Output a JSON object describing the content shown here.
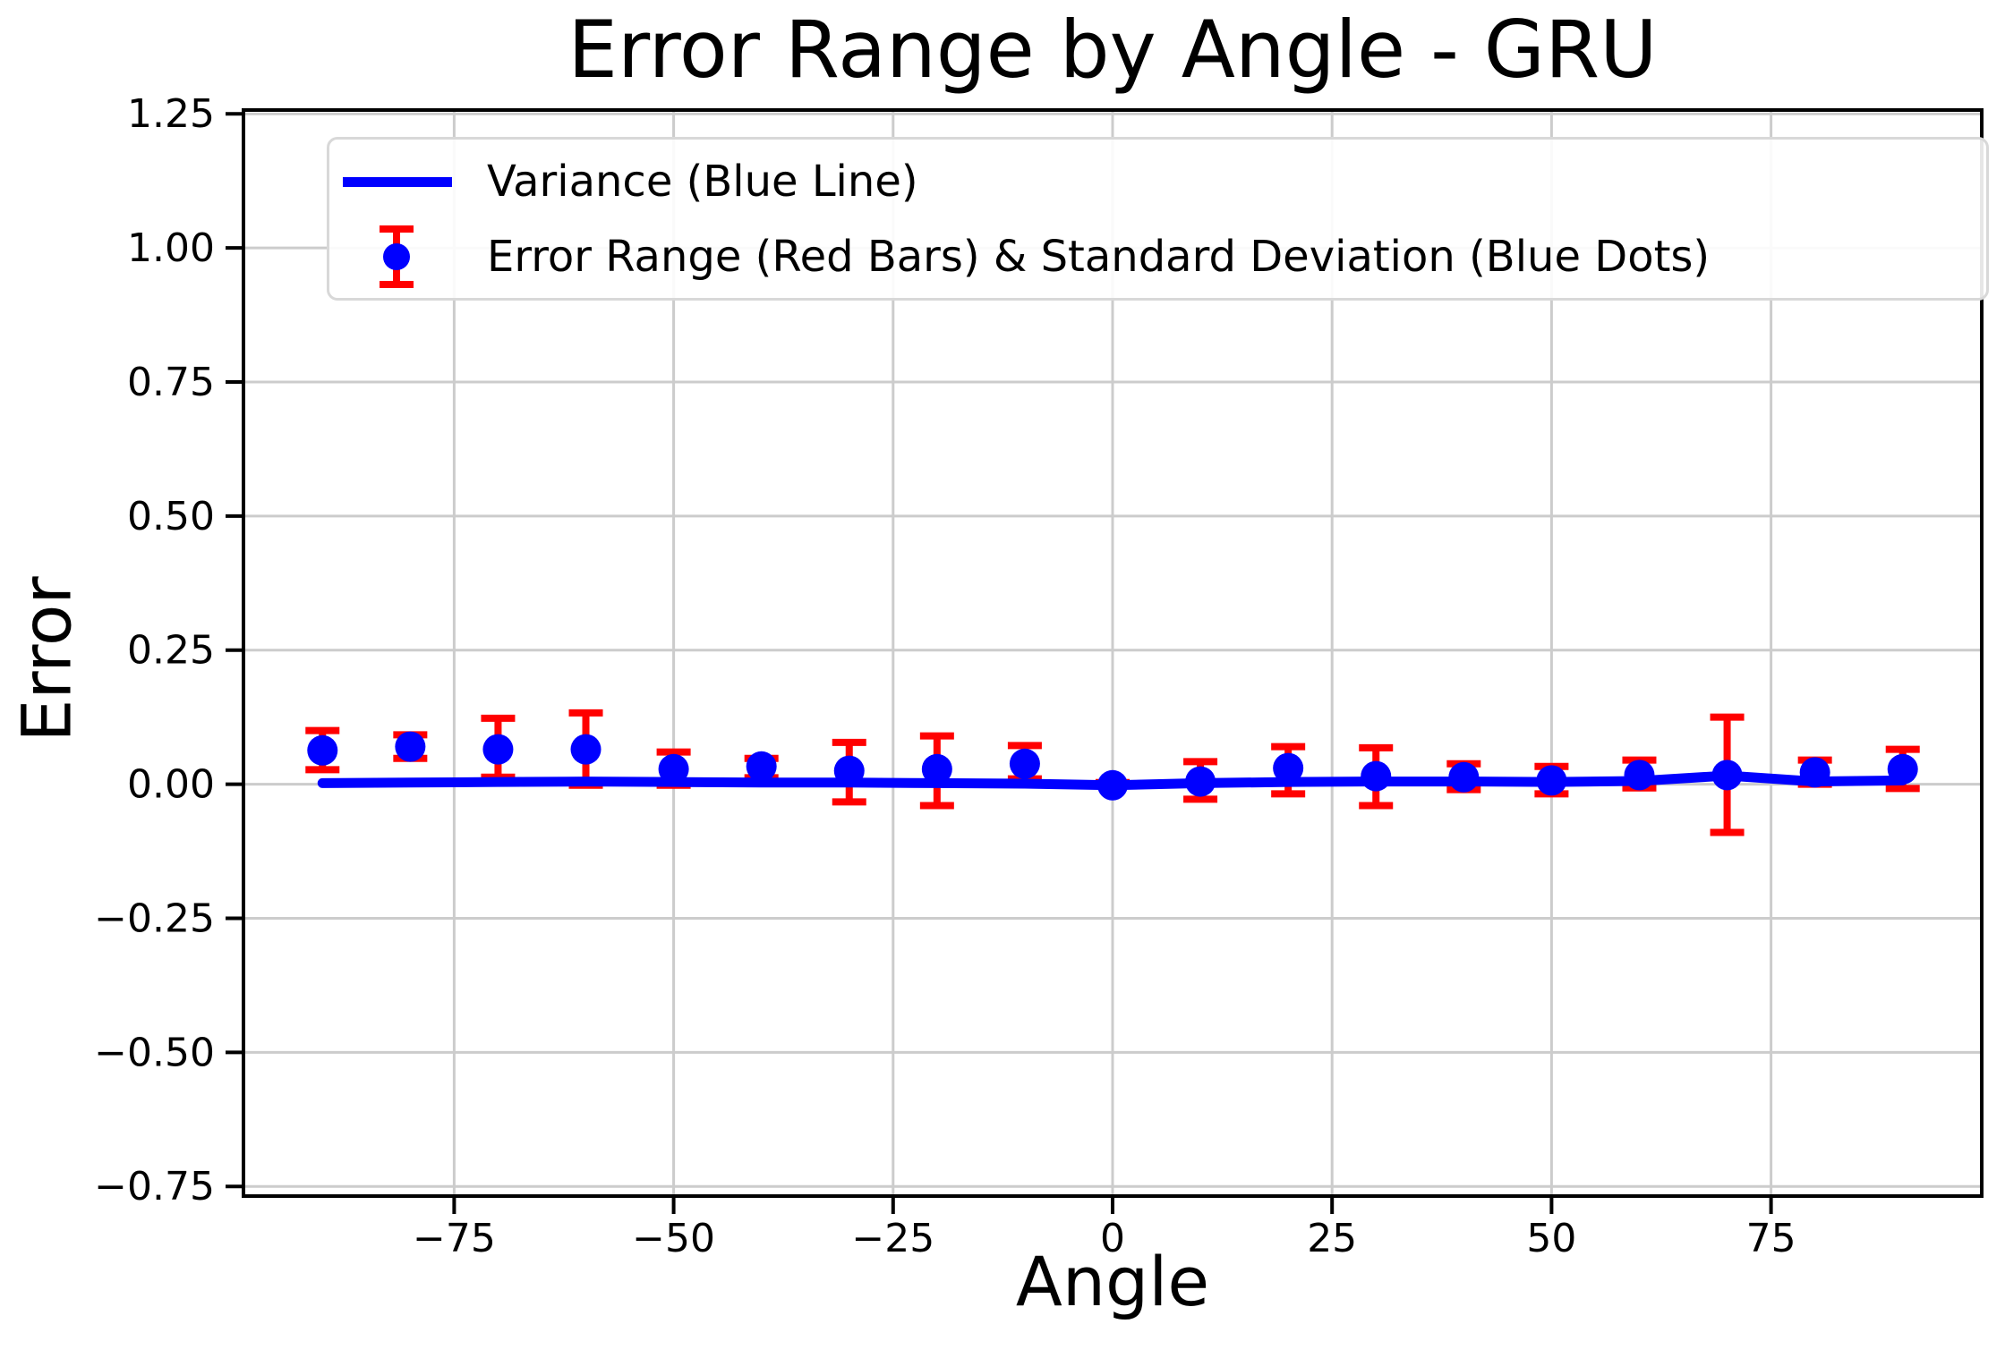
{
  "chart_data": {
    "type": "scatter",
    "title": "Error Range by Angle - GRU",
    "xlabel": "Angle",
    "ylabel": "Error",
    "xlim": [
      -99,
      99
    ],
    "ylim": [
      -0.768,
      1.257
    ],
    "xticks": [
      -75,
      -50,
      -25,
      0,
      25,
      50,
      75
    ],
    "xtick_labels": [
      "−75",
      "−50",
      "−25",
      "0",
      "25",
      "50",
      "75"
    ],
    "yticks": [
      1.25,
      1.0,
      0.75,
      0.5,
      0.25,
      0.0,
      -0.25,
      -0.5,
      -0.75
    ],
    "ytick_labels": [
      "1.25",
      "1.00",
      "0.75",
      "0.50",
      "0.25",
      "0.00",
      "−0.25",
      "−0.50",
      "−0.75"
    ],
    "grid": true,
    "legend_position": "upper left",
    "legend": [
      "Variance (Blue Line)",
      "Error Range (Red Bars) & Standard Deviation (Blue Dots)"
    ],
    "colors": {
      "line": "#0000ff",
      "dots": "#0000ff",
      "error_bars": "#ff0000",
      "grid": "#cccccc",
      "spine": "#000000",
      "text": "#000000",
      "legend_border": "#d8d8d8",
      "background": "#ffffff"
    },
    "x": [
      -90,
      -80,
      -70,
      -60,
      -50,
      -40,
      -30,
      -20,
      -10,
      0,
      10,
      20,
      30,
      40,
      50,
      60,
      70,
      80,
      90
    ],
    "series": [
      {
        "name": "Variance (Blue Line)",
        "type": "line",
        "values": [
          0.002,
          0.003,
          0.004,
          0.005,
          0.004,
          0.003,
          0.003,
          0.002,
          0.001,
          -0.002,
          0.002,
          0.004,
          0.005,
          0.005,
          0.004,
          0.006,
          0.016,
          0.005,
          0.007
        ]
      },
      {
        "name": "Standard Deviation (Blue Dots)",
        "type": "scatter",
        "values": [
          0.063,
          0.07,
          0.065,
          0.065,
          0.028,
          0.033,
          0.025,
          0.028,
          0.038,
          -0.002,
          0.005,
          0.03,
          0.015,
          0.013,
          0.007,
          0.017,
          0.017,
          0.022,
          0.028
        ]
      },
      {
        "name": "Error Range (Red Bars)",
        "type": "errorbar",
        "upper": [
          0.1,
          0.092,
          0.123,
          0.133,
          0.06,
          0.048,
          0.078,
          0.09,
          0.072,
          0.003,
          0.042,
          0.07,
          0.068,
          0.038,
          0.033,
          0.045,
          0.125,
          0.045,
          0.065
        ],
        "lower": [
          0.027,
          0.048,
          0.013,
          -0.002,
          -0.002,
          0.012,
          -0.033,
          -0.04,
          0.01,
          -0.003,
          -0.028,
          -0.018,
          -0.04,
          -0.01,
          -0.018,
          -0.007,
          -0.09,
          0.0,
          -0.008
        ]
      }
    ]
  }
}
